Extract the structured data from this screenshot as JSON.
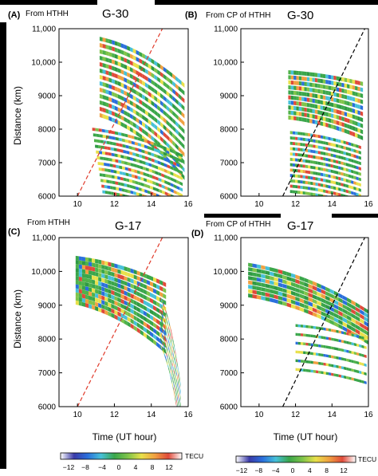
{
  "figure": {
    "colorbar_unit": "TECU",
    "colorbar_ticks": [
      "−12",
      "−8",
      "−4",
      "0",
      "4",
      "8",
      "12"
    ],
    "colorbar_colors": [
      "#ffffff",
      "#3a3aa8",
      "#2a6fdc",
      "#46c0d8",
      "#3aa64a",
      "#7fc44a",
      "#e8e04a",
      "#f0a040",
      "#e04a3a",
      "#ffffff"
    ],
    "x_axis_label": "Time (UT hour)",
    "y_axis_label": "Distance (km)",
    "line_color_reference": "#e03a2a",
    "line_color_black": "#000000"
  },
  "chart_data": [
    {
      "type": "heatmap",
      "panel_label": "(A)",
      "source": "From HTHH",
      "title": "G-30",
      "xlabel": "",
      "ylabel": "Distance (km)",
      "xlim": [
        9,
        16
      ],
      "ylim": [
        6000,
        11000
      ],
      "xticks": [
        "10",
        "12",
        "14",
        "16"
      ],
      "yticks": [
        "6000",
        "7000",
        "8000",
        "9000",
        "10,000",
        "11,000"
      ],
      "dashed_line": {
        "color": "red",
        "x": [
          10,
          14.6
        ],
        "y": [
          6000,
          11000
        ]
      },
      "colorscale_range": [
        -12,
        12
      ]
    },
    {
      "type": "heatmap",
      "panel_label": "(B)",
      "source": "From CP of HTHH",
      "title": "G-30",
      "xlabel": "",
      "ylabel": "",
      "xlim": [
        9,
        16
      ],
      "ylim": [
        6000,
        11000
      ],
      "xticks": [
        "10",
        "12",
        "14",
        "16"
      ],
      "yticks": [
        "6000",
        "7000",
        "8000",
        "9000",
        "10,000",
        "11,000"
      ],
      "dashed_line": {
        "color": "black",
        "x": [
          11.3,
          15.8
        ],
        "y": [
          6000,
          11000
        ]
      },
      "colorscale_range": [
        -12,
        12
      ]
    },
    {
      "type": "heatmap",
      "panel_label": "(C)",
      "source": "From HTHH",
      "title": "G-17",
      "xlabel": "Time (UT hour)",
      "ylabel": "Distance (km)",
      "xlim": [
        9,
        16
      ],
      "ylim": [
        6000,
        11000
      ],
      "xticks": [
        "10",
        "12",
        "14",
        "16"
      ],
      "yticks": [
        "6000",
        "7000",
        "8000",
        "9000",
        "10,000",
        "11,000"
      ],
      "dashed_line": {
        "color": "red",
        "x": [
          10,
          14.6
        ],
        "y": [
          6000,
          11000
        ]
      },
      "colorscale_range": [
        -12,
        12
      ]
    },
    {
      "type": "heatmap",
      "panel_label": "(D)",
      "source": "From CP of HTHH",
      "title": "G-17",
      "xlabel": "Time (UT hour)",
      "ylabel": "",
      "xlim": [
        9,
        16
      ],
      "ylim": [
        6000,
        11000
      ],
      "xticks": [
        "10",
        "12",
        "14",
        "16"
      ],
      "yticks": [
        "6000",
        "7000",
        "8000",
        "9000",
        "10,000",
        "11,000"
      ],
      "dashed_line": {
        "color": "black",
        "x": [
          11.3,
          15.8
        ],
        "y": [
          6000,
          11000
        ]
      },
      "colorscale_range": [
        -12,
        12
      ]
    }
  ]
}
